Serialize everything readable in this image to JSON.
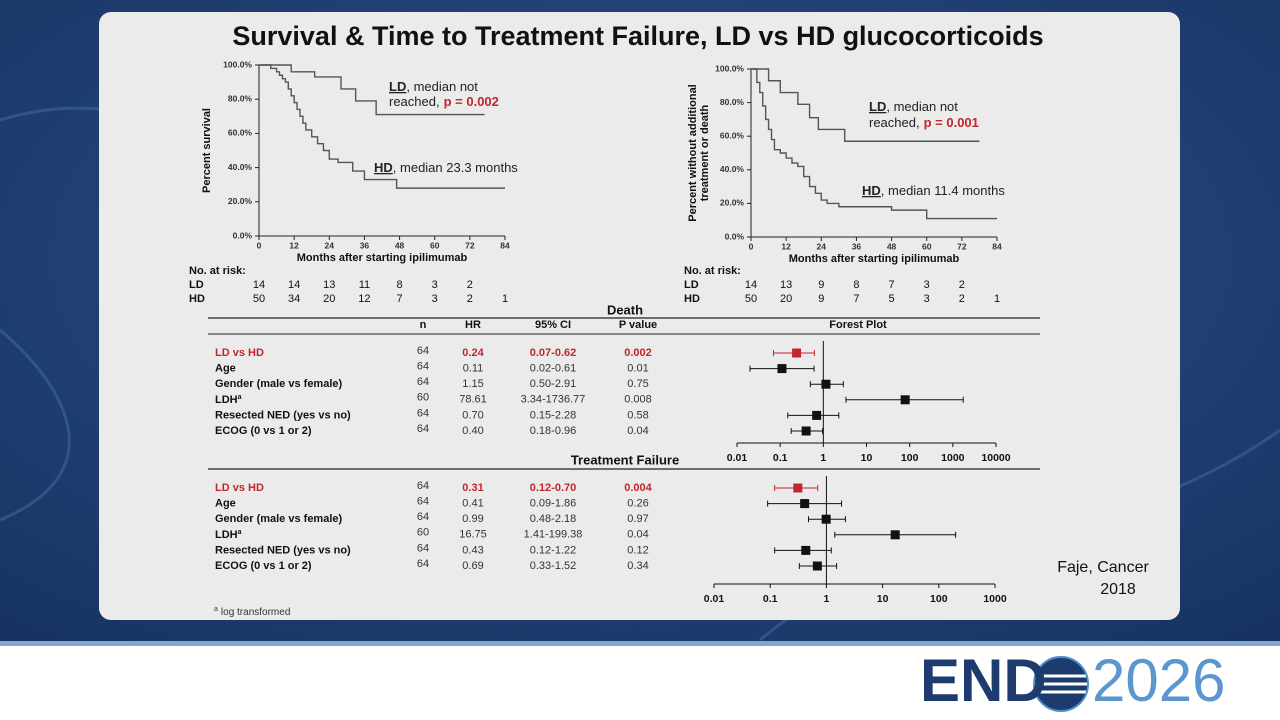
{
  "title": "Survival & Time to Treatment Failure, LD vs HD glucocorticoids",
  "chart_data": [
    {
      "type": "line",
      "step": true,
      "y_label": [
        "Percent survival"
      ],
      "x_label": "Months after starting ipilimumab",
      "xlim": [
        0,
        84
      ],
      "ylim": [
        0,
        100
      ],
      "xticks": [
        0,
        12,
        24,
        36,
        48,
        60,
        72,
        84
      ],
      "yticks": [
        {
          "value": 0,
          "label": "0.0%"
        },
        {
          "value": 20,
          "label": "20.0%"
        },
        {
          "value": 40,
          "label": "40.0%"
        },
        {
          "value": 60,
          "label": "60.0%"
        },
        {
          "value": 80,
          "label": "80.0%"
        },
        {
          "value": 100,
          "label": "100.0%"
        }
      ],
      "series": [
        {
          "name": "LD",
          "color": "#555555",
          "x": [
            0,
            11,
            19,
            28,
            33,
            40,
            77
          ],
          "values": [
            100,
            96,
            93,
            86,
            79,
            71,
            71
          ]
        },
        {
          "name": "HD",
          "color": "#555555",
          "x": [
            0,
            4,
            6,
            7,
            8,
            9,
            10,
            11,
            12,
            13,
            14,
            15,
            16,
            18,
            20,
            22,
            24,
            27,
            32,
            36,
            47,
            84
          ],
          "values": [
            100,
            98,
            96,
            94,
            92,
            90,
            86,
            82,
            78,
            74,
            70,
            66,
            62,
            58,
            54,
            50,
            45,
            43,
            38,
            33,
            28,
            28
          ]
        }
      ],
      "annotations": [
        {
          "group": "LD",
          "line1": ", median not",
          "line2": "reached,",
          "p": "p = 0.002"
        },
        {
          "group": "HD",
          "line1": ", median 23.3 months"
        }
      ],
      "at_risk": {
        "label": "No. at risk:",
        "rows": [
          {
            "name": "LD",
            "values": [
              14,
              14,
              13,
              11,
              8,
              3,
              2
            ]
          },
          {
            "name": "HD",
            "values": [
              50,
              34,
              20,
              12,
              7,
              3,
              2,
              1
            ]
          }
        ]
      }
    },
    {
      "type": "line",
      "step": true,
      "y_label": [
        "Percent without additional",
        "treatment or death"
      ],
      "x_label": "Months after starting ipilimumab",
      "xlim": [
        0,
        84
      ],
      "ylim": [
        0,
        100
      ],
      "xticks": [
        0,
        12,
        24,
        36,
        48,
        60,
        72,
        84
      ],
      "yticks": [
        {
          "value": 0,
          "label": "0.0%"
        },
        {
          "value": 20,
          "label": "20.0%"
        },
        {
          "value": 40,
          "label": "40.0%"
        },
        {
          "value": 60,
          "label": "60.0%"
        },
        {
          "value": 80,
          "label": "80.0%"
        },
        {
          "value": 100,
          "label": "100.0%"
        }
      ],
      "series": [
        {
          "name": "LD",
          "color": "#555555",
          "x": [
            0,
            6,
            10,
            16,
            20,
            23,
            32,
            78
          ],
          "values": [
            100,
            93,
            86,
            79,
            71,
            64,
            57,
            57
          ]
        },
        {
          "name": "HD",
          "color": "#555555",
          "x": [
            0,
            2,
            3,
            4,
            5,
            6,
            7,
            8,
            10,
            12,
            14,
            16,
            18,
            20,
            22,
            24,
            26,
            30,
            36,
            48,
            60,
            84
          ],
          "values": [
            100,
            92,
            86,
            78,
            70,
            64,
            58,
            52,
            50,
            47,
            44,
            42,
            36,
            30,
            26,
            22,
            20,
            18,
            18,
            16,
            11,
            11
          ]
        }
      ],
      "annotations": [
        {
          "group": "LD",
          "line1": ", median not",
          "line2": "reached,",
          "p": "p = 0.001"
        },
        {
          "group": "HD",
          "line1": ", median 11.4 months"
        }
      ],
      "at_risk": {
        "label": "No. at risk:",
        "rows": [
          {
            "name": "LD",
            "values": [
              14,
              13,
              9,
              8,
              7,
              3,
              2
            ]
          },
          {
            "name": "HD",
            "values": [
              50,
              20,
              9,
              7,
              5,
              3,
              2,
              1
            ]
          }
        ]
      }
    }
  ],
  "tables": [
    {
      "title": "Death",
      "columns": [
        "n",
        "HR",
        "95% CI",
        "P value",
        "Forest Plot"
      ],
      "axis": {
        "log": true,
        "xlim": [
          0.01,
          10000
        ],
        "xticks": [
          0.01,
          0.1,
          1,
          10,
          100,
          1000,
          10000
        ]
      },
      "rows": [
        {
          "label": "LD vs HD",
          "highlight": true,
          "n": 64,
          "hr": 0.24,
          "ci_low": 0.07,
          "ci_high": 0.62,
          "ci_label": "0.07-0.62",
          "p": 0.002
        },
        {
          "label": "Age",
          "n": 64,
          "hr": 0.11,
          "ci_low": 0.02,
          "ci_high": 0.61,
          "ci_label": "0.02-0.61",
          "p": 0.01
        },
        {
          "label": "Gender (male vs female)",
          "n": 64,
          "hr": 1.15,
          "ci_low": 0.5,
          "ci_high": 2.91,
          "ci_label": "0.50-2.91",
          "p": 0.75
        },
        {
          "label": "LDH",
          "note": "a",
          "n": 60,
          "hr": 78.61,
          "ci_low": 3.34,
          "ci_high": 1736.77,
          "ci_label": "3.34-1736.77",
          "p": 0.008
        },
        {
          "label": "Resected NED (yes vs no)",
          "n": 64,
          "hr": {
            "value": 0.7,
            "label": "0.70"
          },
          "ci_low": 0.15,
          "ci_high": 2.28,
          "ci_label": "0.15-2.28",
          "p": 0.58
        },
        {
          "label": "ECOG (0 vs 1 or 2)",
          "n": 64,
          "hr": {
            "value": 0.4,
            "label": "0.40"
          },
          "ci_low": 0.18,
          "ci_high": 0.96,
          "ci_label": "0.18-0.96",
          "p": 0.04
        }
      ]
    },
    {
      "title": "Treatment Failure",
      "axis": {
        "log": true,
        "xlim": [
          0.01,
          1000
        ],
        "xticks": [
          0.01,
          0.1,
          1,
          10,
          100,
          1000
        ]
      },
      "rows": [
        {
          "label": "LD vs HD",
          "highlight": true,
          "n": 64,
          "hr": 0.31,
          "ci_low": 0.12,
          "ci_high": 0.7,
          "ci_label": "0.12-0.70",
          "p": 0.004
        },
        {
          "label": "Age",
          "n": 64,
          "hr": 0.41,
          "ci_low": 0.09,
          "ci_high": 1.86,
          "ci_label": "0.09-1.86",
          "p": 0.26
        },
        {
          "label": "Gender (male vs female)",
          "n": 64,
          "hr": 0.99,
          "ci_low": 0.48,
          "ci_high": 2.18,
          "ci_label": "0.48-2.18",
          "p": 0.97
        },
        {
          "label": "LDH",
          "note": "a",
          "n": 60,
          "hr": 16.75,
          "ci_low": 1.41,
          "ci_high": 199.38,
          "ci_label": "1.41-199.38",
          "p": 0.04
        },
        {
          "label": "Resected NED (yes vs no)",
          "n": 64,
          "hr": 0.43,
          "ci_low": 0.12,
          "ci_high": 1.22,
          "ci_label": "0.12-1.22",
          "p": 0.12
        },
        {
          "label": "ECOG (0 vs 1 or 2)",
          "n": 64,
          "hr": 0.69,
          "ci_low": 0.33,
          "ci_high": 1.52,
          "ci_label": "0.33-1.52",
          "p": 0.34
        }
      ]
    }
  ],
  "footnote": {
    "marker": "a",
    "text": "log transformed"
  },
  "citation": [
    "Faje, Cancer",
    "2018"
  ],
  "logo": {
    "left": "END",
    "right": "2026"
  }
}
